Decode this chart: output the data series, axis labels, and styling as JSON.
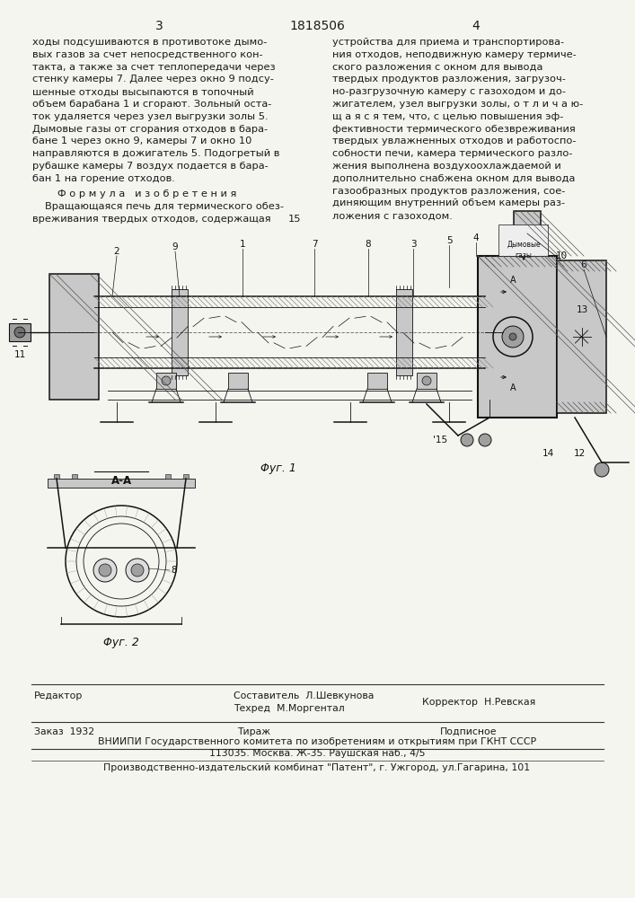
{
  "page_number_left": "3",
  "patent_number": "1818506",
  "page_number_right": "4",
  "background_color": "#f5f5f0",
  "text_color": "#1a1a1a",
  "col1_text": [
    "ходы подсушиваются в противотоке дымо-",
    "вых газов за счет непосредственного кон-",
    "такта, а также за счет теплопередачи через",
    "стенку камеры 7. Далее через окно 9 подсу-",
    "шенные отходы высыпаются в топочный",
    "объем барабана 1 и сгорают. Зольный оста-",
    "ток удаляется через узел выгрузки золы 5.",
    "Дымовые газы от сгорания отходов в бара-",
    "бане 1 через окно 9, камеры 7 и окно 10",
    "направляются в дожигатель 5. Подогретый в",
    "рубашке камеры 7 воздух подается в бара-",
    "бан 1 на горение отходов."
  ],
  "col2_text": [
    "устройства для приема и транспортирова-",
    "ния отходов, неподвижную камеру термиче-",
    "ского разложения с окном для вывода",
    "твердых продуктов разложения, загрузоч-",
    "но-разгрузочную камеру с газоходом и до-",
    "жигателем, узел выгрузки золы, о т л и ч а ю-",
    "щ а я с я тем, что, с целью повышения эф-",
    "фективности термического обезвреживания",
    "твердых увлажненных отходов и работоспо-",
    "собности печи, камера термического разло-",
    "жения выполнена воздухоохлаждаемой и",
    "дополнительно снабжена окном для вывода",
    "газообразных продуктов разложения, сое-",
    "диняющим внутренний объем камеры раз-",
    "ложения с газоходом."
  ],
  "formula_header": "Ф о р м у л а   и з о б р е т е н и я",
  "formula_text": [
    "Вращающаяся печь для термического обез-",
    "вреживания твердых отходов, содержащая"
  ],
  "line15_number": "15",
  "fig1_label": "Φуг. 1",
  "fig2_label": "Φуг. 2",
  "aa_label": "A-A",
  "editor_label": "Редактор",
  "composer_label": "Составитель  Л.Шевкунова",
  "techred_label": "Техред  М.Моргентал",
  "corrector_label": "Корректор  Н.Ревская",
  "order_label": "Заказ  1932",
  "tirazh_label": "Тираж",
  "podpisnoe_label": "Подписное",
  "vniiipi_line1": "ВНИИПИ Государственного комитета по изобретениям и открытиям при ГКНТ СССР",
  "vniiipi_line2": "113035. Москва. Ж-35. Раушская наб., 4/5",
  "publisher_line": "Производственно-издательский комбинат \"Патент\", г. Ужгород, ул.Гагарина, 101"
}
